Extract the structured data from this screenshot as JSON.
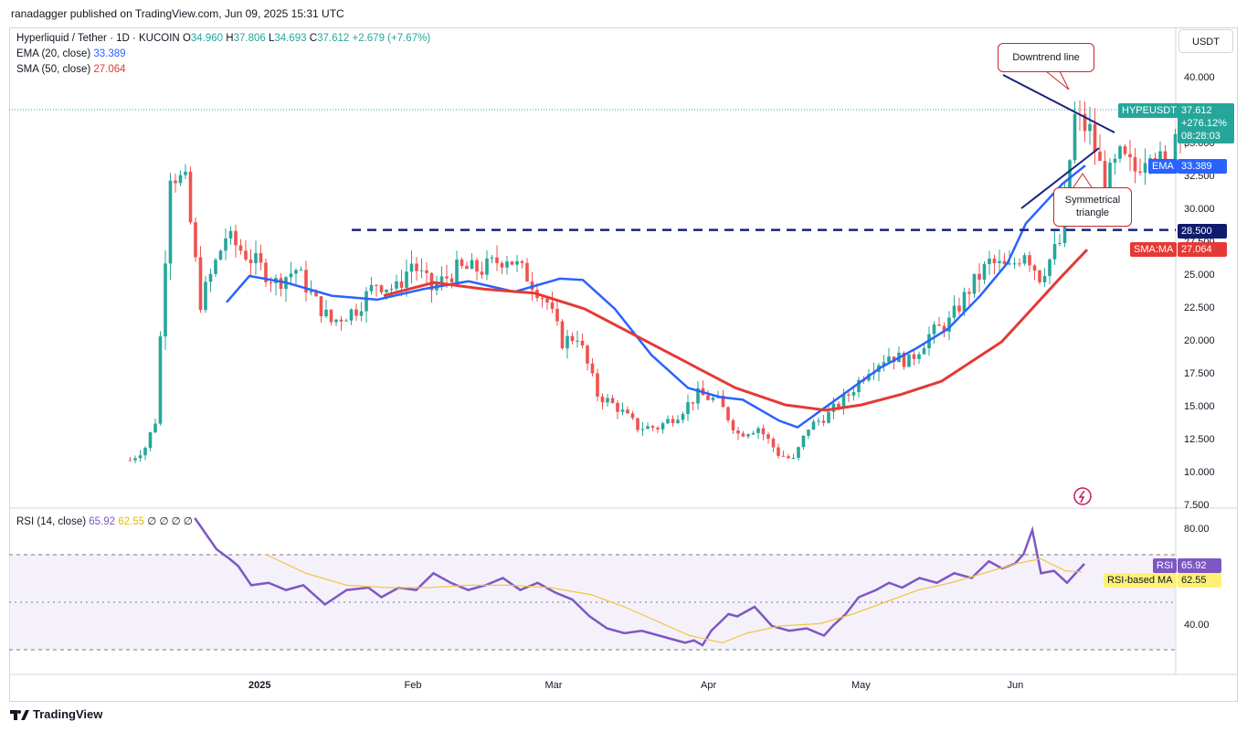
{
  "header": {
    "published": "ranadagger published on TradingView.com, Jun 09, 2025 15:31 UTC"
  },
  "legend": {
    "symbol": "Hyperliquid / Tether · 1D · KUCOIN",
    "o_label": "O",
    "o": "34.960",
    "h_label": "H",
    "h": "37.806",
    "l_label": "L",
    "l": "34.693",
    "c_label": "C",
    "c": "37.612",
    "change": "+2.679 (+7.67%)",
    "ema_label": "EMA (20, close)",
    "ema_val": "33.389",
    "sma_label": "SMA (50, close)",
    "sma_val": "27.064",
    "rsi_label": "RSI (14, close)",
    "rsi_val": "65.92",
    "rsi_ma_val": "62.55",
    "rsi_extra": "∅ ∅ ∅ ∅"
  },
  "currency": "USDT",
  "price_ticks": [
    "40.000",
    "35.000",
    "32.500",
    "30.000",
    "27.500",
    "25.000",
    "22.500",
    "20.000",
    "17.500",
    "15.000",
    "12.500",
    "10.000",
    "7.500"
  ],
  "rsi_ticks": [
    "80.00",
    "40.00"
  ],
  "x_ticks": [
    "2025",
    "Feb",
    "Mar",
    "Apr",
    "May",
    "Jun"
  ],
  "tags": {
    "symbol": "HYPEUSDT",
    "price": "37.612",
    "pct": "+276.12%",
    "timer": "08:28:03",
    "ema": "EMA",
    "ema_val": "33.389",
    "level": "28.500",
    "sma": "SMA:MA",
    "sma_val": "27.064",
    "rsi": "RSI",
    "rsi_val": "65.92",
    "rsi_ma": "RSI-based MA",
    "rsi_ma_val": "62.55"
  },
  "annotations": {
    "downtrend": "Downtrend line",
    "triangle_1": "Symmetrical",
    "triangle_2": "triangle"
  },
  "branding": {
    "name": "TradingView"
  },
  "colors": {
    "up": "#26a69a",
    "down": "#ef5350",
    "ema": "#2962ff",
    "sma": "#e53935",
    "rsi": "#7e57c2",
    "rsi_ma": "#f5c542",
    "level": "#1a237e"
  },
  "chart_data": {
    "type": "candlestick",
    "symbol": "HYPEUSDT",
    "last": {
      "open": 34.96,
      "high": 37.806,
      "low": 34.693,
      "close": 37.612
    },
    "ylim": [
      7.5,
      42.5
    ],
    "x_range": [
      "2024-11-29",
      "2025-06-30"
    ],
    "horizontal_level": 28.5,
    "ema_series": [
      [
        7,
        23
      ],
      [
        12,
        25
      ],
      [
        20,
        24.5
      ],
      [
        30,
        23.5
      ],
      [
        40,
        23.2
      ],
      [
        50,
        24
      ],
      [
        60,
        24.6
      ],
      [
        70,
        23.8
      ],
      [
        80,
        24.8
      ],
      [
        85,
        24.7
      ],
      [
        92,
        22.5
      ],
      [
        100,
        19
      ],
      [
        108,
        16.5
      ],
      [
        115,
        15.8
      ],
      [
        120,
        15.6
      ],
      [
        128,
        14
      ],
      [
        132,
        13.5
      ],
      [
        136,
        14.5
      ],
      [
        142,
        16
      ],
      [
        150,
        18
      ],
      [
        158,
        19.5
      ],
      [
        165,
        21
      ],
      [
        172,
        23.5
      ],
      [
        178,
        26
      ],
      [
        182,
        29
      ],
      [
        186,
        30.5
      ],
      [
        190,
        32
      ],
      [
        195,
        33.4
      ]
    ],
    "sma_series": [
      [
        55,
        23.5
      ],
      [
        65,
        24.5
      ],
      [
        75,
        24
      ],
      [
        85,
        23.7
      ],
      [
        95,
        22.5
      ],
      [
        105,
        20.5
      ],
      [
        115,
        18.5
      ],
      [
        125,
        16.5
      ],
      [
        135,
        15.2
      ],
      [
        143,
        14.8
      ],
      [
        150,
        15.2
      ],
      [
        158,
        16
      ],
      [
        166,
        17
      ],
      [
        172,
        18.5
      ],
      [
        178,
        20
      ],
      [
        184,
        22.5
      ],
      [
        190,
        25
      ],
      [
        195,
        27
      ]
    ],
    "rsi_series": [
      [
        -5,
        85
      ],
      [
        0,
        72
      ],
      [
        3,
        68
      ],
      [
        5,
        65
      ],
      [
        8,
        57
      ],
      [
        12,
        58
      ],
      [
        16,
        55
      ],
      [
        20,
        57
      ],
      [
        25,
        49
      ],
      [
        30,
        55
      ],
      [
        35,
        56
      ],
      [
        38,
        52
      ],
      [
        42,
        56
      ],
      [
        46,
        55
      ],
      [
        50,
        62
      ],
      [
        54,
        58
      ],
      [
        58,
        55
      ],
      [
        62,
        57
      ],
      [
        66,
        60
      ],
      [
        70,
        55
      ],
      [
        74,
        58
      ],
      [
        78,
        54
      ],
      [
        82,
        51
      ],
      [
        86,
        44
      ],
      [
        90,
        39
      ],
      [
        94,
        37
      ],
      [
        98,
        38
      ],
      [
        102,
        36
      ],
      [
        106,
        34
      ],
      [
        108,
        33
      ],
      [
        110,
        34
      ],
      [
        112,
        32
      ],
      [
        114,
        38
      ],
      [
        118,
        45
      ],
      [
        120,
        44
      ],
      [
        124,
        48
      ],
      [
        128,
        40
      ],
      [
        132,
        38
      ],
      [
        136,
        39
      ],
      [
        140,
        36
      ],
      [
        142,
        40
      ],
      [
        145,
        45
      ],
      [
        148,
        52
      ],
      [
        152,
        55
      ],
      [
        155,
        58
      ],
      [
        158,
        56
      ],
      [
        162,
        60
      ],
      [
        166,
        58
      ],
      [
        170,
        62
      ],
      [
        174,
        60
      ],
      [
        178,
        67
      ],
      [
        181,
        64
      ],
      [
        184,
        66
      ],
      [
        186,
        70
      ],
      [
        188,
        80
      ],
      [
        190,
        62
      ],
      [
        193,
        63
      ],
      [
        196,
        58
      ],
      [
        198,
        62
      ],
      [
        200,
        65.9
      ]
    ],
    "rsi_ma_series": [
      [
        0,
        70
      ],
      [
        10,
        62
      ],
      [
        20,
        57
      ],
      [
        30,
        56
      ],
      [
        40,
        56
      ],
      [
        50,
        57
      ],
      [
        60,
        57
      ],
      [
        70,
        56
      ],
      [
        80,
        53
      ],
      [
        88,
        48
      ],
      [
        96,
        42
      ],
      [
        104,
        36
      ],
      [
        112,
        33
      ],
      [
        118,
        37
      ],
      [
        126,
        40
      ],
      [
        136,
        41
      ],
      [
        144,
        45
      ],
      [
        152,
        50
      ],
      [
        160,
        55
      ],
      [
        168,
        58
      ],
      [
        176,
        62
      ],
      [
        184,
        66
      ],
      [
        190,
        68
      ],
      [
        196,
        63
      ],
      [
        200,
        62.5
      ]
    ],
    "rsi_ylim": [
      20,
      95
    ],
    "rsi_bands": [
      70,
      30
    ]
  }
}
